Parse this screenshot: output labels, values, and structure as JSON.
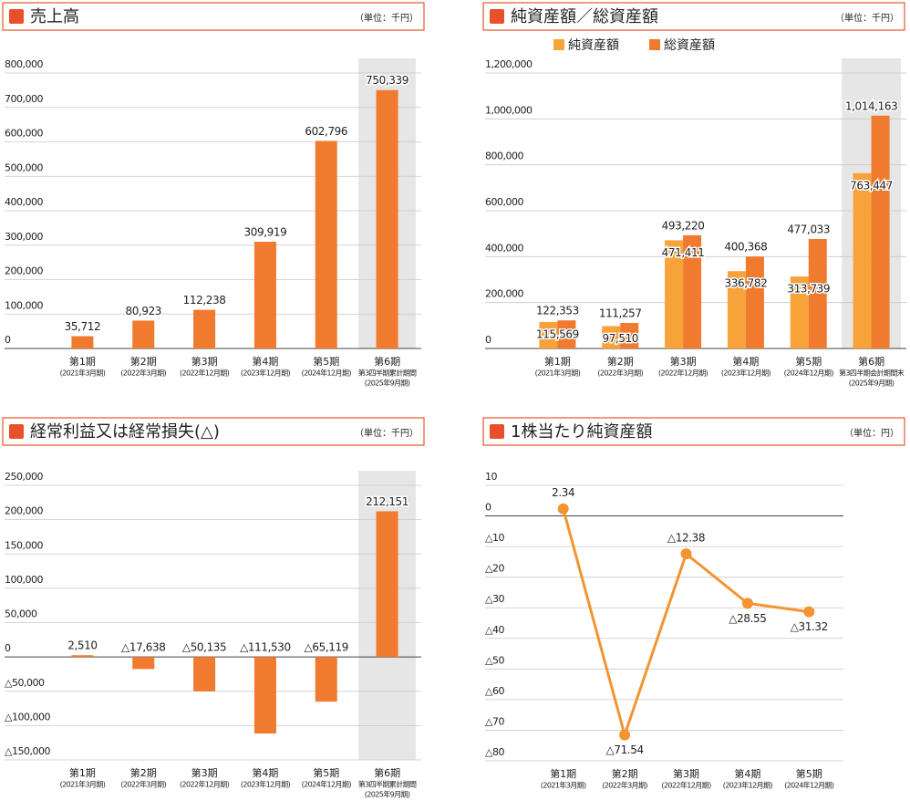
{
  "chart_data": [
    {
      "type": "bar",
      "title": "売上高",
      "unit": "（単位：千円）",
      "categories": [
        "第1期",
        "第2期",
        "第3期",
        "第4期",
        "第5期",
        "第6期"
      ],
      "category_notes": [
        [
          "(2021年3月期)"
        ],
        [
          "(2022年3月期)"
        ],
        [
          "(2022年12月期)"
        ],
        [
          "(2023年12月期)"
        ],
        [
          "(2024年12月期)"
        ],
        [
          "第3四半期累計期間",
          "(2025年9月期)"
        ]
      ],
      "values": [
        35712,
        80923,
        112238,
        309919,
        602796,
        750339
      ],
      "value_labels": [
        "35,712",
        "80,923",
        "112,238",
        "309,919",
        "602,796",
        "750,339"
      ],
      "color": "#f07a2e",
      "highlight_category": 5,
      "ylim": [
        0,
        800000
      ],
      "yticks": [
        0,
        {
          "value": 100000,
          "label": "100,000"
        },
        {
          "value": 200000,
          "label": "200,000"
        },
        {
          "value": 300000,
          "label": "300,000"
        },
        {
          "value": 400000,
          "label": "400,000"
        },
        {
          "value": 500000,
          "label": "500,000"
        },
        {
          "value": 600000,
          "label": "600,000"
        },
        {
          "value": 700000,
          "label": "700,000"
        },
        {
          "value": 800000,
          "label": "800,000"
        }
      ],
      "grid": true
    },
    {
      "type": "bar",
      "title": "純資産額／総資産額",
      "unit": "（単位：千円）",
      "categories": [
        "第1期",
        "第2期",
        "第3期",
        "第4期",
        "第5期",
        "第6期"
      ],
      "category_notes": [
        [
          "(2021年3月期)"
        ],
        [
          "(2022年3月期)"
        ],
        [
          "(2022年12月期)"
        ],
        [
          "(2023年12月期)"
        ],
        [
          "(2024年12月期)"
        ],
        [
          "第3四半期会計期間末",
          "(2025年9月期)"
        ]
      ],
      "series": [
        {
          "name": "純資産額",
          "color": "#f7a33a",
          "values": [
            115569,
            97510,
            471411,
            336782,
            313739,
            763447
          ],
          "value_labels": [
            "115,569",
            "97,510",
            "471,411",
            "336,782",
            "313,739",
            "763,447"
          ]
        },
        {
          "name": "総資産額",
          "color": "#f07a2e",
          "values": [
            122353,
            111257,
            493220,
            400368,
            477033,
            1014163
          ],
          "value_labels": [
            "122,353",
            "111,257",
            "493,220",
            "400,368",
            "477,033",
            "1,014,163"
          ]
        }
      ],
      "highlight_category": 5,
      "ylim": [
        0,
        1200000
      ],
      "yticks": [
        0,
        {
          "value": 200000,
          "label": "200,000"
        },
        {
          "value": 400000,
          "label": "400,000"
        },
        {
          "value": 600000,
          "label": "600,000"
        },
        {
          "value": 800000,
          "label": "800,000"
        },
        {
          "value": 1000000,
          "label": "1,000,000"
        },
        {
          "value": 1200000,
          "label": "1,200,000"
        }
      ],
      "grid": true
    },
    {
      "type": "bar",
      "title": "経常利益又は経常損失(△)",
      "unit": "（単位：千円）",
      "categories": [
        "第1期",
        "第2期",
        "第3期",
        "第4期",
        "第5期",
        "第6期"
      ],
      "category_notes": [
        [
          "(2021年3月期)"
        ],
        [
          "(2022年3月期)"
        ],
        [
          "(2022年12月期)"
        ],
        [
          "(2023年12月期)"
        ],
        [
          "(2024年12月期)"
        ],
        [
          "第3四半期累計期間",
          "(2025年9月期)"
        ]
      ],
      "values": [
        2510,
        -17638,
        -50135,
        -111530,
        -65119,
        212151
      ],
      "value_labels": [
        "2,510",
        "△17,638",
        "△50,135",
        "△111,530",
        "△65,119",
        "212,151"
      ],
      "color": "#f07a2e",
      "highlight_category": 5,
      "ylim": [
        -150000,
        250000
      ],
      "yticks": [
        {
          "value": 250000,
          "label": "250,000"
        },
        {
          "value": 200000,
          "label": "200,000"
        },
        {
          "value": 150000,
          "label": "150,000"
        },
        {
          "value": 100000,
          "label": "100,000"
        },
        {
          "value": 50000,
          "label": "50,000"
        },
        0,
        {
          "value": -50000,
          "label": "△50,000"
        },
        {
          "value": -100000,
          "label": "△100,000"
        },
        {
          "value": -150000,
          "label": "△150,000"
        }
      ],
      "grid": true
    },
    {
      "type": "line",
      "title": "1株当たり純資産額",
      "unit": "（単位：円）",
      "categories": [
        "第1期",
        "第2期",
        "第3期",
        "第4期",
        "第5期"
      ],
      "category_notes": [
        [
          "(2021年3月期)"
        ],
        [
          "(2022年3月期)"
        ],
        [
          "(2022年12月期)"
        ],
        [
          "(2023年12月期)"
        ],
        [
          "(2024年12月期)"
        ]
      ],
      "values": [
        2.34,
        -71.54,
        -12.38,
        -28.55,
        -31.32
      ],
      "value_labels": [
        "2.34",
        "△71.54",
        "△12.38",
        "△28.55",
        "△31.32"
      ],
      "color": "#f39430",
      "ylim": [
        -80,
        10
      ],
      "yticks": [
        10,
        0,
        {
          "value": -10,
          "label": "△10"
        },
        {
          "value": -20,
          "label": "△20"
        },
        {
          "value": -30,
          "label": "△30"
        },
        {
          "value": -40,
          "label": "△40"
        },
        {
          "value": -50,
          "label": "△50"
        },
        {
          "value": -60,
          "label": "△60"
        },
        {
          "value": -70,
          "label": "△70"
        },
        {
          "value": -80,
          "label": "△80"
        }
      ],
      "grid": true
    }
  ]
}
